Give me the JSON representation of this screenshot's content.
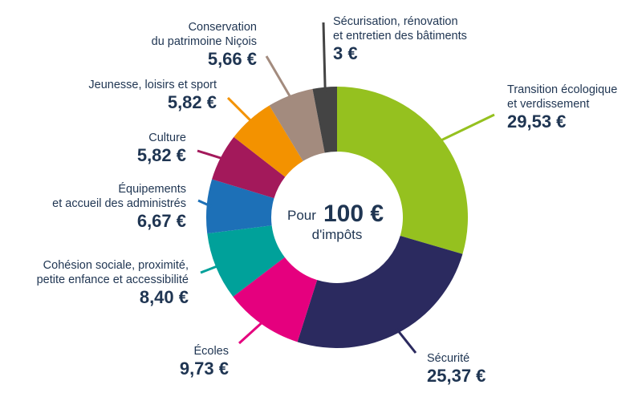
{
  "chart_data": {
    "type": "pie",
    "center_text": {
      "prefix": "Pour",
      "amount": "100 €",
      "suffix": "d'impôts"
    },
    "total": 100,
    "slices": [
      {
        "name_lines": [
          "Transition écologique",
          "et verdissement"
        ],
        "value": 29.53,
        "value_label": "29,53 €",
        "color": "#95c11f"
      },
      {
        "name_lines": [
          "Sécurité"
        ],
        "value": 25.37,
        "value_label": "25,37 €",
        "color": "#2b2a5f"
      },
      {
        "name_lines": [
          "Écoles"
        ],
        "value": 9.73,
        "value_label": "9,73 €",
        "color": "#e5007e"
      },
      {
        "name_lines": [
          "Cohésion sociale, proximité,",
          "petite enfance et accessibilité"
        ],
        "value": 8.4,
        "value_label": "8,40 €",
        "color": "#00a19a"
      },
      {
        "name_lines": [
          "Équipements",
          "et accueil des administrés"
        ],
        "value": 6.67,
        "value_label": "6,67 €",
        "color": "#1d70b7"
      },
      {
        "name_lines": [
          "Culture"
        ],
        "value": 5.82,
        "value_label": "5,82 €",
        "color": "#a3195b"
      },
      {
        "name_lines": [
          "Jeunesse, loisirs et sport"
        ],
        "value": 5.82,
        "value_label": "5,82 €",
        "color": "#f39200"
      },
      {
        "name_lines": [
          "Conservation",
          "du patrimoine Niçois"
        ],
        "value": 5.66,
        "value_label": "5,66 €",
        "color": "#a38b7e"
      },
      {
        "name_lines": [
          "Sécurisation, rénovation",
          "et entretien des bâtiments"
        ],
        "value": 3.0,
        "value_label": "3 €",
        "color": "#444444"
      }
    ]
  }
}
